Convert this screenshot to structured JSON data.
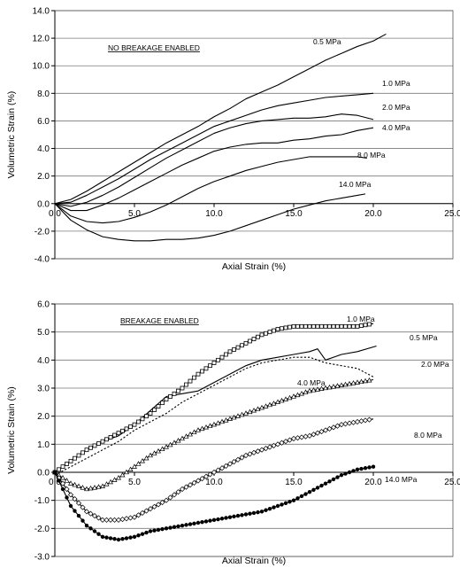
{
  "chart_data": [
    {
      "type": "line",
      "title": "NO BREAKAGE ENABLED",
      "xlabel": "Axial Strain (%)",
      "ylabel": "Volumetric Strain (%)",
      "xlim": [
        0,
        25
      ],
      "ylim": [
        -4,
        14
      ],
      "xticks": [
        "0.0",
        "5.0",
        "10.0",
        "15.0",
        "20.0",
        "25.0"
      ],
      "yticks": [
        "14.0",
        "12.0",
        "10.0",
        "8.0",
        "6.0",
        "4.0",
        "2.0",
        "0.0",
        "-2.0",
        "-4.0"
      ],
      "grid": "horizontal",
      "series": [
        {
          "name": "0.5 MPa",
          "marker": "none",
          "x": [
            0,
            1,
            2,
            3,
            4,
            5,
            6,
            7,
            8,
            9,
            10,
            11,
            12,
            13,
            14,
            15,
            16,
            17,
            18,
            19,
            20,
            20.8
          ],
          "y": [
            0,
            0.3,
            0.9,
            1.6,
            2.3,
            3.0,
            3.7,
            4.4,
            5.0,
            5.6,
            6.3,
            6.9,
            7.6,
            8.1,
            8.6,
            9.2,
            9.8,
            10.4,
            10.9,
            11.4,
            11.8,
            12.3
          ]
        },
        {
          "name": "1.0 MPa",
          "marker": "none",
          "x": [
            0,
            1,
            2,
            3,
            4,
            5,
            6,
            7,
            8,
            9,
            10,
            11,
            12,
            13,
            14,
            15,
            16,
            17,
            18,
            19,
            20
          ],
          "y": [
            0,
            0.1,
            0.6,
            1.2,
            1.8,
            2.5,
            3.2,
            3.8,
            4.4,
            5.0,
            5.6,
            6.0,
            6.4,
            6.8,
            7.1,
            7.3,
            7.5,
            7.7,
            7.8,
            7.9,
            8.0
          ]
        },
        {
          "name": "2.0 MPa",
          "marker": "none",
          "x": [
            0,
            1,
            2,
            3,
            4,
            5,
            6,
            7,
            8,
            9,
            10,
            11,
            12,
            13,
            14,
            15,
            16,
            17,
            18,
            19,
            20
          ],
          "y": [
            0,
            -0.2,
            0.1,
            0.6,
            1.2,
            1.9,
            2.6,
            3.3,
            3.9,
            4.5,
            5.1,
            5.5,
            5.8,
            6.0,
            6.1,
            6.2,
            6.2,
            6.3,
            6.5,
            6.4,
            6.1
          ]
        },
        {
          "name": "4.0 MPa",
          "marker": "none",
          "x": [
            0,
            1,
            2,
            3,
            4,
            5,
            6,
            7,
            8,
            9,
            10,
            11,
            12,
            13,
            14,
            15,
            16,
            17,
            18,
            19,
            20
          ],
          "y": [
            0,
            -0.5,
            -0.5,
            -0.1,
            0.4,
            1.0,
            1.6,
            2.2,
            2.8,
            3.3,
            3.8,
            4.1,
            4.3,
            4.4,
            4.4,
            4.6,
            4.7,
            4.9,
            5.0,
            5.3,
            5.5
          ]
        },
        {
          "name": "8.0 MPa",
          "marker": "none",
          "x": [
            0,
            1,
            2,
            3,
            4,
            5,
            6,
            7,
            8,
            9,
            10,
            11,
            12,
            13,
            14,
            15,
            16,
            17,
            18,
            19,
            19.6
          ],
          "y": [
            0,
            -0.9,
            -1.3,
            -1.4,
            -1.3,
            -1.0,
            -0.6,
            -0.1,
            0.5,
            1.1,
            1.6,
            2.0,
            2.4,
            2.7,
            3.0,
            3.2,
            3.4,
            3.4,
            3.4,
            3.4,
            3.3
          ]
        },
        {
          "name": "14.0 MPa",
          "marker": "none",
          "x": [
            0,
            1,
            2,
            3,
            4,
            5,
            6,
            7,
            8,
            9,
            10,
            11,
            12,
            13,
            14,
            15,
            16,
            17,
            18,
            19,
            19.5
          ],
          "y": [
            0,
            -1.2,
            -1.9,
            -2.4,
            -2.6,
            -2.7,
            -2.7,
            -2.6,
            -2.6,
            -2.5,
            -2.3,
            -2.0,
            -1.6,
            -1.2,
            -0.8,
            -0.4,
            -0.1,
            0.2,
            0.4,
            0.6,
            0.7
          ]
        }
      ]
    },
    {
      "type": "line",
      "title": "BREAKAGE ENABLED",
      "xlabel": "Axial Strain (%)",
      "ylabel": "Volumetric Strain (%)",
      "xlim": [
        0,
        25
      ],
      "ylim": [
        -3,
        6
      ],
      "xticks": [
        "0.0",
        "5.0",
        "10.0",
        "15.0",
        "20.0",
        "25.0"
      ],
      "yticks": [
        "6.0",
        "5.0",
        "4.0",
        "3.0",
        "2.0",
        "1.0",
        "0.0",
        "-1.0",
        "-2.0",
        "-3.0"
      ],
      "grid": "horizontal",
      "series": [
        {
          "name": "0.5 MPa",
          "marker": "none",
          "x": [
            0,
            1,
            2,
            3,
            4,
            5,
            6,
            7,
            8,
            9,
            10,
            11,
            12,
            13,
            14,
            15,
            16,
            16.5,
            17,
            18,
            19,
            20.2
          ],
          "y": [
            0,
            0.4,
            0.8,
            1.1,
            1.3,
            1.7,
            2.2,
            2.7,
            2.8,
            2.9,
            3.2,
            3.5,
            3.8,
            4.0,
            4.1,
            4.2,
            4.3,
            4.4,
            4.0,
            4.2,
            4.3,
            4.5
          ]
        },
        {
          "name": "1.0 MPa",
          "marker": "square",
          "x": [
            0,
            1,
            2,
            3,
            4,
            5,
            6,
            7,
            8,
            9,
            10,
            11,
            12,
            13,
            14,
            15,
            16,
            17,
            18,
            19,
            20
          ],
          "y": [
            0,
            0.4,
            0.8,
            1.1,
            1.4,
            1.7,
            2.1,
            2.6,
            3.0,
            3.5,
            3.9,
            4.3,
            4.6,
            4.9,
            5.1,
            5.2,
            5.2,
            5.2,
            5.2,
            5.2,
            5.3
          ]
        },
        {
          "name": "2.0 MPa",
          "marker": "dotted",
          "x": [
            0,
            1,
            2,
            3,
            4,
            5,
            6,
            7,
            8,
            9,
            10,
            11,
            12,
            13,
            14,
            15,
            16,
            17,
            18,
            19,
            20
          ],
          "y": [
            -0.1,
            0.2,
            0.5,
            0.8,
            1.1,
            1.5,
            1.8,
            2.1,
            2.5,
            2.8,
            3.1,
            3.4,
            3.7,
            3.9,
            4.0,
            4.1,
            4.1,
            3.9,
            3.8,
            3.7,
            3.4
          ]
        },
        {
          "name": "4.0 MPa",
          "marker": "triangle",
          "x": [
            0,
            1,
            2,
            3,
            4,
            5,
            6,
            7,
            8,
            9,
            10,
            11,
            12,
            13,
            14,
            15,
            16,
            17,
            18,
            19,
            20
          ],
          "y": [
            0,
            -0.4,
            -0.6,
            -0.5,
            -0.2,
            0.2,
            0.6,
            0.9,
            1.2,
            1.5,
            1.7,
            1.9,
            2.1,
            2.3,
            2.5,
            2.7,
            2.9,
            3.0,
            3.1,
            3.2,
            3.3
          ]
        },
        {
          "name": "8.0 MPa",
          "marker": "diamond",
          "x": [
            0,
            1,
            2,
            3,
            4,
            5,
            6,
            7,
            8,
            9,
            10,
            11,
            12,
            13,
            14,
            15,
            16,
            17,
            18,
            19,
            20
          ],
          "y": [
            0,
            -0.8,
            -1.4,
            -1.7,
            -1.7,
            -1.6,
            -1.3,
            -1.0,
            -0.6,
            -0.3,
            0.0,
            0.3,
            0.6,
            0.8,
            1.0,
            1.2,
            1.3,
            1.5,
            1.7,
            1.8,
            1.9
          ]
        },
        {
          "name": "14.0 MPa",
          "marker": "circle",
          "x": [
            0,
            1,
            2,
            3,
            4,
            5,
            6,
            7,
            8,
            9,
            10,
            11,
            12,
            13,
            14,
            15,
            16,
            17,
            18,
            19,
            20
          ],
          "y": [
            0,
            -1.2,
            -1.9,
            -2.3,
            -2.4,
            -2.3,
            -2.1,
            -2.0,
            -1.9,
            -1.8,
            -1.7,
            -1.6,
            -1.5,
            -1.4,
            -1.2,
            -1.0,
            -0.7,
            -0.4,
            -0.1,
            0.1,
            0.2
          ]
        }
      ]
    }
  ]
}
